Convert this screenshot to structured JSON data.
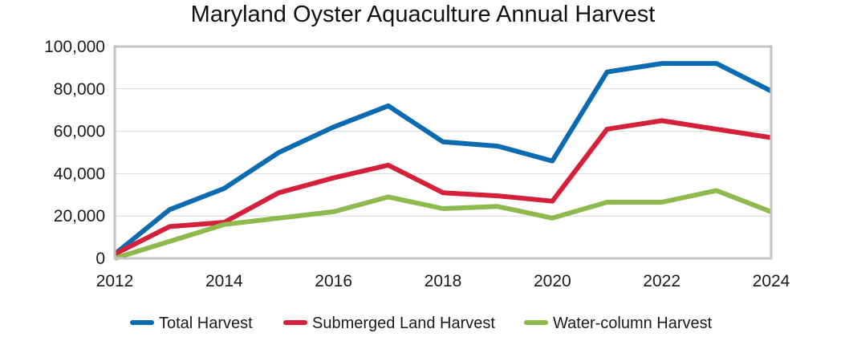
{
  "chart_data": {
    "type": "line",
    "title": "Maryland Oyster Aquaculture Annual Harvest",
    "xlabel": "",
    "ylabel": "",
    "xlim": [
      2012,
      2024
    ],
    "ylim": [
      0,
      100000
    ],
    "x_ticks": [
      "2012",
      "2014",
      "2016",
      "2018",
      "2020",
      "2022",
      "2024"
    ],
    "y_ticks": [
      "0",
      "20,000",
      "40,000",
      "60,000",
      "80,000",
      "100,000"
    ],
    "grid": "horizontal",
    "legend": "bottom",
    "x": [
      2012,
      2013,
      2014,
      2015,
      2016,
      2017,
      2018,
      2019,
      2020,
      2021,
      2022,
      2023,
      2024
    ],
    "series": [
      {
        "name": "Total Harvest",
        "color": "#0b6bb0",
        "values": [
          2000,
          23000,
          33000,
          50000,
          62000,
          72000,
          55000,
          53000,
          46000,
          88000,
          92000,
          92000,
          79000
        ]
      },
      {
        "name": "Submerged Land Harvest",
        "color": "#d5203b",
        "values": [
          2000,
          15000,
          17000,
          31000,
          38000,
          44000,
          31000,
          29500,
          27000,
          61000,
          65000,
          61000,
          57000
        ]
      },
      {
        "name": "Water-column Harvest",
        "color": "#8db94d",
        "values": [
          0,
          8000,
          16000,
          19000,
          22000,
          29000,
          23500,
          24500,
          19000,
          26500,
          26500,
          32000,
          22000
        ]
      }
    ]
  }
}
